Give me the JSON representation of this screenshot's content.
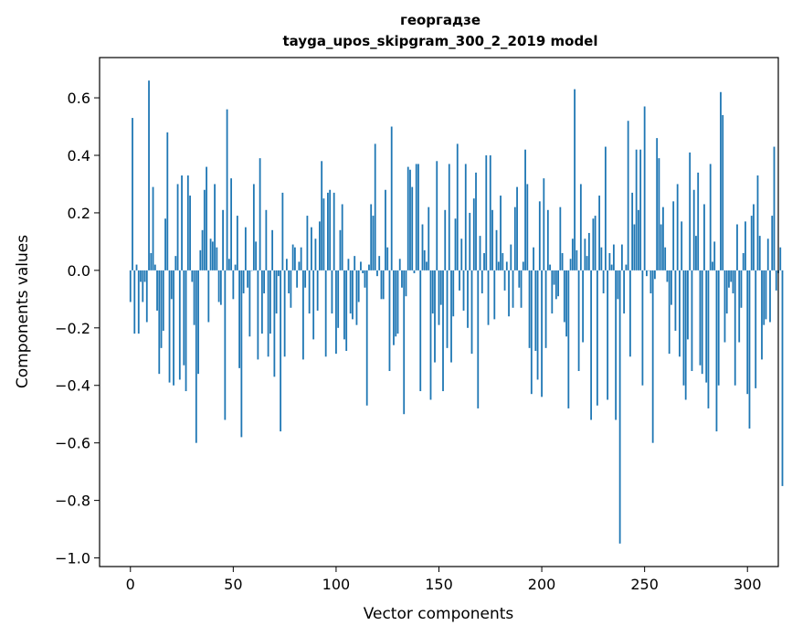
{
  "chart_data": {
    "type": "bar",
    "title_line1": "георгадзе",
    "title_line2": "tayga_upos_skipgram_300_2_2019 model",
    "xlabel": "Vector components",
    "ylabel": "Components values",
    "xlim": [
      -15,
      315
    ],
    "ylim": [
      -1.03,
      0.74
    ],
    "xticks": [
      0,
      50,
      100,
      150,
      200,
      250,
      300
    ],
    "xtick_labels": [
      "0",
      "50",
      "100",
      "150",
      "200",
      "250",
      "300"
    ],
    "yticks": [
      -1.0,
      -0.8,
      -0.6,
      -0.4,
      -0.2,
      0.0,
      0.2,
      0.4,
      0.6
    ],
    "ytick_labels": [
      "−1.0",
      "−0.8",
      "−0.6",
      "−0.4",
      "−0.2",
      "0.0",
      "0.2",
      "0.4",
      "0.6"
    ],
    "bar_color": "#1f77b4",
    "grid": false,
    "values": [
      -0.11,
      0.53,
      -0.22,
      0.02,
      -0.22,
      -0.04,
      -0.11,
      -0.04,
      -0.18,
      0.66,
      0.06,
      0.29,
      0.02,
      -0.14,
      -0.36,
      -0.27,
      -0.21,
      0.18,
      0.48,
      -0.39,
      -0.1,
      -0.4,
      0.05,
      0.3,
      -0.38,
      0.33,
      -0.33,
      -0.42,
      0.33,
      0.26,
      -0.04,
      -0.19,
      -0.6,
      -0.36,
      0.07,
      0.14,
      0.28,
      0.36,
      -0.18,
      0.11,
      0.1,
      0.3,
      0.08,
      -0.11,
      -0.12,
      0.21,
      -0.52,
      0.56,
      0.04,
      0.32,
      -0.1,
      0.02,
      0.19,
      -0.34,
      -0.58,
      -0.08,
      0.15,
      -0.06,
      -0.23,
      0.0,
      0.3,
      0.1,
      -0.31,
      0.39,
      -0.22,
      -0.08,
      0.21,
      -0.3,
      -0.22,
      0.14,
      -0.37,
      -0.15,
      -0.02,
      -0.56,
      0.27,
      -0.3,
      0.04,
      -0.08,
      -0.13,
      0.09,
      0.08,
      -0.06,
      0.03,
      0.08,
      -0.31,
      -0.06,
      0.19,
      -0.15,
      0.15,
      -0.24,
      0.11,
      -0.14,
      0.17,
      0.38,
      0.25,
      -0.3,
      0.27,
      0.28,
      -0.15,
      0.27,
      -0.29,
      -0.2,
      0.14,
      0.23,
      -0.24,
      -0.28,
      0.04,
      -0.15,
      -0.17,
      0.05,
      -0.19,
      -0.11,
      0.03,
      -0.01,
      -0.06,
      -0.47,
      0.02,
      0.23,
      0.19,
      0.44,
      -0.02,
      0.05,
      -0.1,
      -0.1,
      0.28,
      0.08,
      -0.35,
      0.5,
      -0.26,
      -0.23,
      -0.22,
      0.04,
      -0.06,
      -0.5,
      -0.09,
      0.36,
      0.35,
      0.29,
      -0.01,
      0.37,
      0.37,
      -0.42,
      0.16,
      0.07,
      0.03,
      0.22,
      -0.45,
      -0.15,
      -0.32,
      0.38,
      -0.19,
      -0.12,
      -0.42,
      0.21,
      -0.27,
      0.37,
      -0.32,
      -0.16,
      0.18,
      0.44,
      -0.07,
      0.11,
      -0.14,
      0.37,
      -0.2,
      0.2,
      -0.29,
      0.25,
      0.34,
      -0.48,
      0.12,
      -0.08,
      0.06,
      0.4,
      -0.19,
      0.4,
      0.21,
      -0.17,
      0.14,
      0.03,
      0.26,
      0.06,
      -0.07,
      0.03,
      -0.16,
      0.09,
      -0.13,
      0.22,
      0.29,
      -0.06,
      -0.13,
      0.03,
      0.42,
      0.3,
      -0.27,
      -0.43,
      0.08,
      -0.28,
      -0.38,
      0.24,
      -0.44,
      0.32,
      -0.27,
      0.21,
      0.02,
      -0.15,
      -0.05,
      -0.1,
      -0.09,
      0.22,
      0.06,
      -0.18,
      -0.23,
      -0.48,
      0.04,
      0.11,
      0.63,
      0.07,
      -0.35,
      0.3,
      -0.25,
      0.11,
      0.05,
      0.13,
      -0.52,
      0.18,
      0.19,
      -0.47,
      0.26,
      0.08,
      -0.08,
      0.43,
      -0.45,
      0.06,
      0.02,
      0.09,
      -0.52,
      -0.1,
      -0.95,
      0.09,
      -0.15,
      0.02,
      0.52,
      -0.3,
      0.27,
      0.16,
      0.42,
      0.21,
      0.42,
      -0.4,
      0.57,
      -0.02,
      0.0,
      -0.08,
      -0.6,
      -0.03,
      0.46,
      0.39,
      0.16,
      0.22,
      0.08,
      -0.04,
      -0.29,
      -0.12,
      0.24,
      -0.21,
      0.3,
      -0.3,
      0.17,
      -0.4,
      -0.45,
      -0.24,
      0.41,
      -0.35,
      0.28,
      0.12,
      0.34,
      -0.33,
      -0.36,
      0.23,
      -0.39,
      -0.48,
      0.37,
      0.03,
      0.1,
      -0.56,
      -0.4,
      0.62,
      0.54,
      -0.25,
      -0.15,
      -0.06,
      -0.04,
      -0.08,
      -0.4,
      0.16,
      -0.25,
      -0.13,
      0.06,
      0.17,
      -0.43,
      -0.55,
      0.19,
      0.23,
      -0.41,
      0.33,
      0.12,
      -0.31,
      -0.19,
      -0.17,
      0.11,
      -0.18,
      0.19,
      0.43,
      -0.07,
      -0.01,
      0.08,
      -0.75
    ]
  }
}
